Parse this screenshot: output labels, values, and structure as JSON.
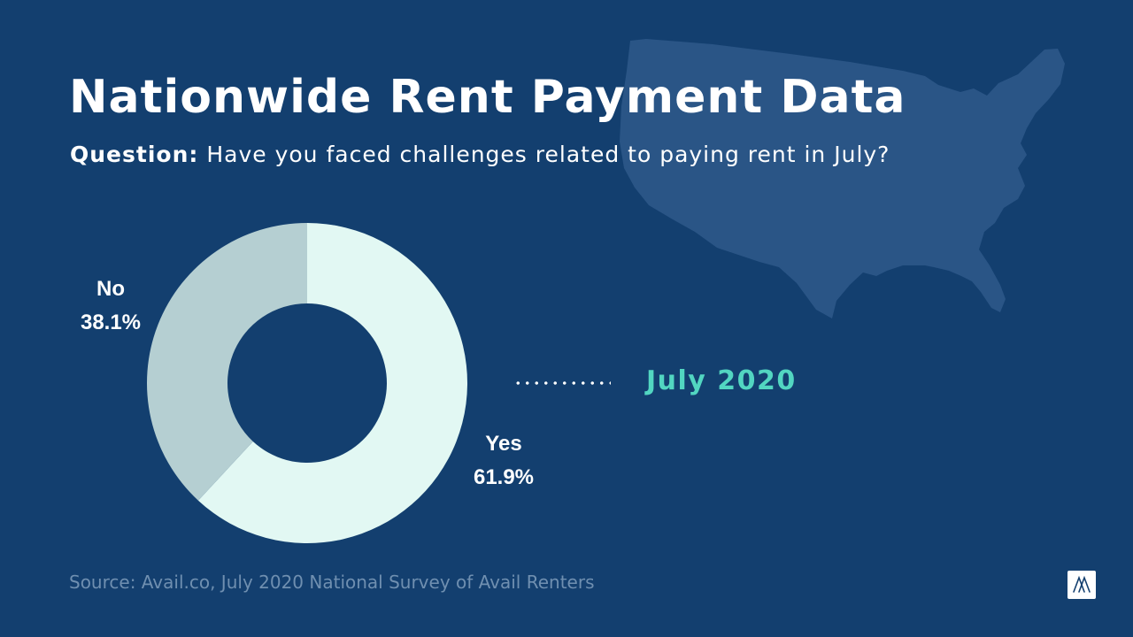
{
  "header": {
    "title": "Nationwide Rent Payment Data",
    "question_label": "Question:",
    "question_text": "Have you faced challenges related to paying rent in July?"
  },
  "period_label": "July 2020",
  "source": "Source: Avail.co, July 2020 National Survey of Avail Renters",
  "icons": {
    "map": "usa-map-icon",
    "logo": "avail-logo-icon"
  },
  "colors": {
    "background": "#133f6f",
    "yes": "#e2f8f3",
    "no": "#b5cfd2",
    "accent": "#52d6c1",
    "map": "#2a5586"
  },
  "chart_data": {
    "type": "pie",
    "style": "donut",
    "slices": [
      {
        "label": "Yes",
        "value": 61.9,
        "display": "61.9%"
      },
      {
        "label": "No",
        "value": 38.1,
        "display": "38.1%"
      }
    ]
  }
}
